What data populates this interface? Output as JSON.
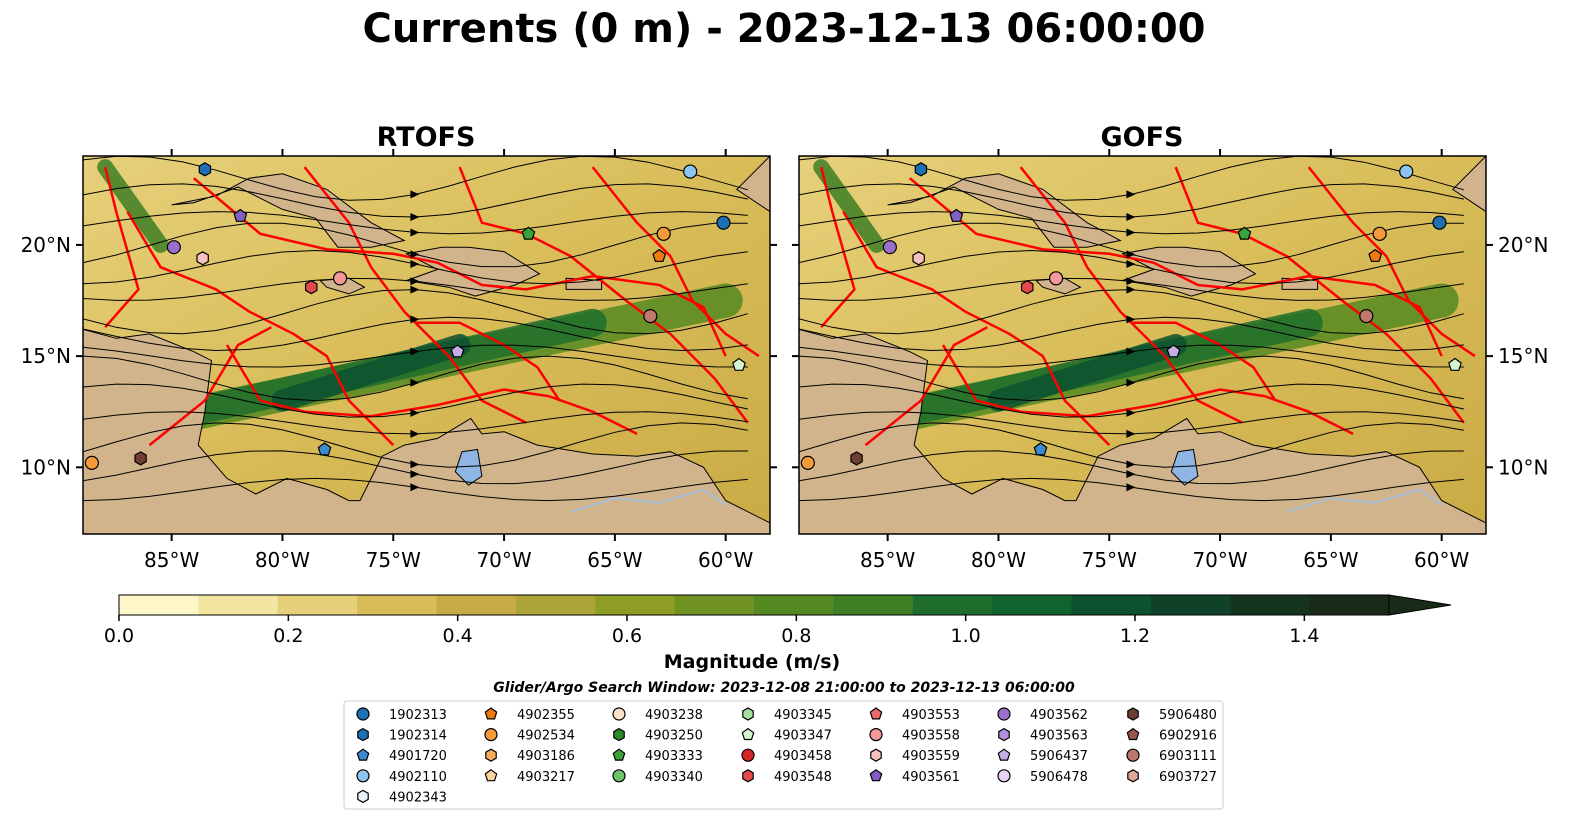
{
  "figure": {
    "title": "Currents (0 m) - 2023-12-13 06:00:00",
    "search_window": "Glider/Argo Search Window: 2023-12-08 21:00:00 to 2023-12-13 06:00:00"
  },
  "chart_data": [
    {
      "type": "heatmap",
      "title": "RTOFS",
      "variable": "Surface current magnitude with streamlines",
      "xlim": [
        -89,
        -58
      ],
      "ylim": [
        7,
        24
      ],
      "xticks": [
        -85,
        -80,
        -75,
        -70,
        -65,
        -60
      ],
      "xtick_labels": [
        "85°W",
        "80°W",
        "75°W",
        "70°W",
        "65°W",
        "60°W"
      ],
      "yticks": [
        10,
        15,
        20
      ],
      "ytick_labels": [
        "10°N",
        "15°N",
        "20°N"
      ],
      "ytick_side": "left"
    },
    {
      "type": "heatmap",
      "title": "GOFS",
      "variable": "Surface current magnitude with streamlines",
      "xlim": [
        -89,
        -58
      ],
      "ylim": [
        7,
        24
      ],
      "xticks": [
        -85,
        -80,
        -75,
        -70,
        -65,
        -60
      ],
      "xtick_labels": [
        "85°W",
        "80°W",
        "75°W",
        "70°W",
        "65°W",
        "60°W"
      ],
      "yticks": [
        10,
        15,
        20
      ],
      "ytick_labels": [
        "10°N",
        "15°N",
        "20°N"
      ],
      "ytick_side": "right"
    }
  ],
  "colorbar": {
    "label": "Magnitude (m/s)",
    "min": 0.0,
    "max": 1.5,
    "step": 0.1,
    "extend": "max",
    "ticks": [
      0.0,
      0.2,
      0.4,
      0.6,
      0.8,
      1.0,
      1.2,
      1.4
    ],
    "tick_labels": [
      "0.0",
      "0.2",
      "0.4",
      "0.6",
      "0.8",
      "1.0",
      "1.2",
      "1.4"
    ],
    "colors": [
      "#fdf6c6",
      "#f3e6a0",
      "#e6d07a",
      "#d8bc58",
      "#c9ab45",
      "#aea538",
      "#8e9d24",
      "#6f9222",
      "#558a22",
      "#3e7e24",
      "#1f6d2c",
      "#10622e",
      "#0c5230",
      "#10422a",
      "#153420",
      "#1a2a18"
    ]
  },
  "map_colors": {
    "land": "#d2b48c",
    "lakes": "#8eb5e3",
    "rivers": "#a8bfd6",
    "eez_lines": "#ff0000",
    "streamlines": "#000000"
  },
  "legend": {
    "columns": [
      [
        {
          "id": "1902313",
          "marker": "circle",
          "color": "#1f6fb4"
        },
        {
          "id": "1902314",
          "marker": "hexagon",
          "color": "#1f6fb4"
        },
        {
          "id": "4901720",
          "marker": "pentagon",
          "color": "#3c8bd1"
        },
        {
          "id": "4902110",
          "marker": "circle",
          "color": "#8ec4ee"
        },
        {
          "id": "4902343",
          "marker": "hexagon",
          "color": "#e8f4fc"
        }
      ],
      [
        {
          "id": "4902355",
          "marker": "pentagon",
          "color": "#f07a10"
        },
        {
          "id": "4902534",
          "marker": "circle",
          "color": "#f59a3a"
        },
        {
          "id": "4903186",
          "marker": "hexagon",
          "color": "#f6ad5d"
        },
        {
          "id": "4903217",
          "marker": "pentagon",
          "color": "#fbd3a0"
        }
      ],
      [
        {
          "id": "4903238",
          "marker": "circle",
          "color": "#fde0c8"
        },
        {
          "id": "4903250",
          "marker": "hexagon",
          "color": "#2a8a2a"
        },
        {
          "id": "4903333",
          "marker": "pentagon",
          "color": "#3aa43a"
        },
        {
          "id": "4903340",
          "marker": "circle",
          "color": "#6dc46d"
        }
      ],
      [
        {
          "id": "4903345",
          "marker": "hexagon",
          "color": "#a4e0a0"
        },
        {
          "id": "4903347",
          "marker": "pentagon",
          "color": "#d4f5d0"
        },
        {
          "id": "4903458",
          "marker": "circle",
          "color": "#d62728"
        },
        {
          "id": "4903548",
          "marker": "hexagon",
          "color": "#e34a4a"
        }
      ],
      [
        {
          "id": "4903553",
          "marker": "pentagon",
          "color": "#ea6a6a"
        },
        {
          "id": "4903558",
          "marker": "circle",
          "color": "#f29a9a"
        },
        {
          "id": "4903559",
          "marker": "hexagon",
          "color": "#f9c0c0"
        },
        {
          "id": "4903561",
          "marker": "pentagon",
          "color": "#8060c0"
        }
      ],
      [
        {
          "id": "4903562",
          "marker": "circle",
          "color": "#9a70cc"
        },
        {
          "id": "4903563",
          "marker": "hexagon",
          "color": "#b090d8"
        },
        {
          "id": "5906437",
          "marker": "pentagon",
          "color": "#c8aee6"
        },
        {
          "id": "5906478",
          "marker": "circle",
          "color": "#e6d4f4"
        }
      ],
      [
        {
          "id": "5906480",
          "marker": "hexagon",
          "color": "#6e3e34"
        },
        {
          "id": "6902916",
          "marker": "pentagon",
          "color": "#94594c"
        },
        {
          "id": "6903111",
          "marker": "circle",
          "color": "#c0786e"
        },
        {
          "id": "6903727",
          "marker": "hexagon",
          "color": "#e0a898"
        }
      ]
    ]
  }
}
